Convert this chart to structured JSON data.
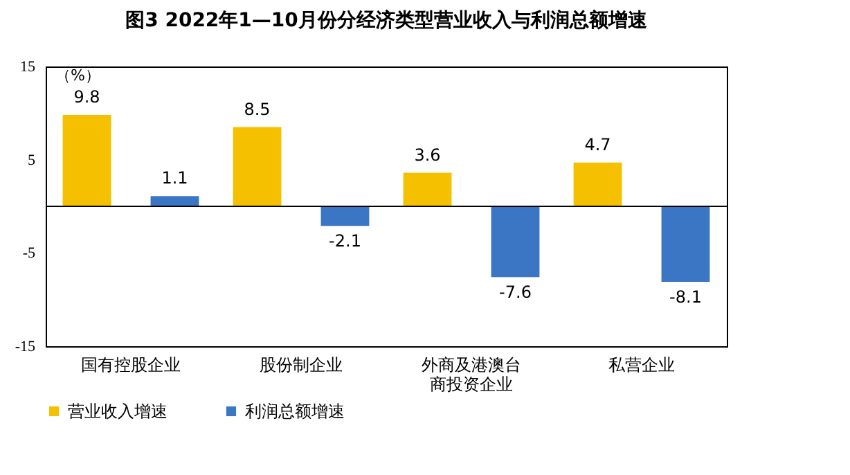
{
  "chart_data": {
    "type": "bar",
    "title": "图3  2022年1—10月份分经济类型营业收入与利润总额增速",
    "ylabel": "（%）",
    "categories": [
      "国有控股企业",
      "股份制企业",
      "外商及港澳台商投资企业",
      "私营企业"
    ],
    "series": [
      {
        "name": "营业收入增速",
        "color": "#f5c000",
        "values": [
          9.8,
          8.5,
          3.6,
          4.7
        ]
      },
      {
        "name": "利润总额增速",
        "color": "#3a76c4",
        "values": [
          1.1,
          -2.1,
          -7.6,
          -8.1
        ]
      }
    ],
    "ylim": [
      -15,
      15
    ],
    "yticks": [
      -15,
      -5,
      5,
      15
    ],
    "data_labels": true,
    "grid": false,
    "legend": "bottom"
  }
}
